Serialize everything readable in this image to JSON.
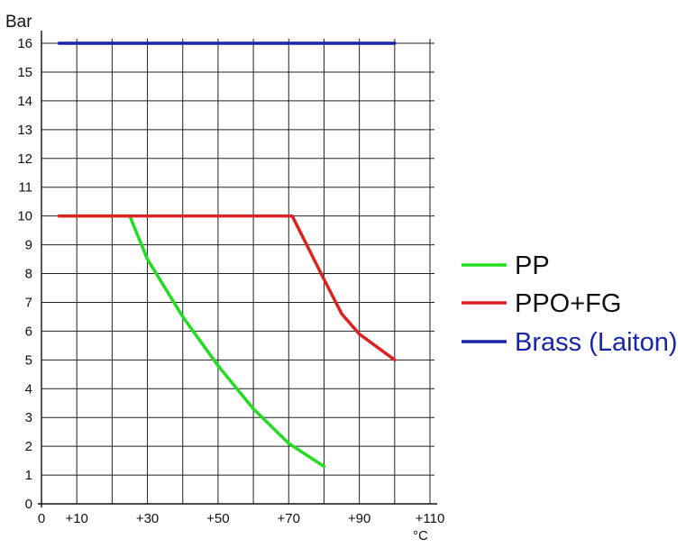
{
  "chart_data": {
    "type": "line",
    "ylabel": "Bar",
    "xlabel": "°C",
    "xlim": [
      0,
      110
    ],
    "ylim": [
      0,
      16
    ],
    "x_ticks": [
      "0",
      "+10",
      "+30",
      "+50",
      "+70",
      "+90",
      "+110"
    ],
    "y_ticks": [
      "0",
      "1",
      "2",
      "3",
      "4",
      "5",
      "6",
      "7",
      "8",
      "9",
      "10",
      "11",
      "12",
      "13",
      "14",
      "15",
      "16"
    ],
    "grid": true,
    "legend_position": "right",
    "series": [
      {
        "name": "PP",
        "color": "#22dd22",
        "points": [
          [
            5,
            10
          ],
          [
            25,
            10
          ],
          [
            30,
            8.5
          ],
          [
            40,
            6.5
          ],
          [
            50,
            4.8
          ],
          [
            60,
            3.3
          ],
          [
            70,
            2.1
          ],
          [
            80,
            1.3
          ]
        ]
      },
      {
        "name": "PPO+FG",
        "color": "#dd2222",
        "points": [
          [
            5,
            10
          ],
          [
            71,
            10
          ],
          [
            80,
            7.8
          ],
          [
            85,
            6.6
          ],
          [
            90,
            5.9
          ],
          [
            100,
            5.0
          ]
        ]
      },
      {
        "name": "Brass (Laiton)",
        "color": "#1a24a8",
        "points": [
          [
            5,
            16
          ],
          [
            100,
            16
          ]
        ]
      }
    ]
  }
}
